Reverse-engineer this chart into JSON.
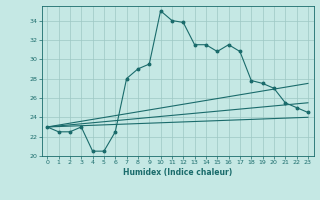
{
  "xlabel": "Humidex (Indice chaleur)",
  "ylabel": "",
  "background_color": "#c5e8e4",
  "grid_color": "#9ec8c4",
  "line_color": "#1a6b6b",
  "xlim": [
    -0.5,
    23.5
  ],
  "ylim": [
    20,
    35.5
  ],
  "yticks": [
    20,
    22,
    24,
    26,
    28,
    30,
    32,
    34
  ],
  "xticks": [
    0,
    1,
    2,
    3,
    4,
    5,
    6,
    7,
    8,
    9,
    10,
    11,
    12,
    13,
    14,
    15,
    16,
    17,
    18,
    19,
    20,
    21,
    22,
    23
  ],
  "series": [
    {
      "x": [
        0,
        1,
        2,
        3,
        4,
        5,
        6,
        7,
        8,
        9,
        10,
        11,
        12,
        13,
        14,
        15,
        16,
        17,
        18,
        19,
        20,
        21,
        22,
        23
      ],
      "y": [
        23,
        22.5,
        22.5,
        23,
        20.5,
        20.5,
        22.5,
        28,
        29,
        29.5,
        35,
        34,
        33.8,
        31.5,
        31.5,
        30.8,
        31.5,
        30.8,
        27.8,
        27.5,
        27,
        25.5,
        25,
        24.5
      ],
      "style": "-o",
      "linewidth": 0.8,
      "markersize": 1.8
    },
    {
      "x": [
        0,
        23
      ],
      "y": [
        23,
        27.5
      ],
      "style": "-",
      "linewidth": 0.8,
      "markersize": 0
    },
    {
      "x": [
        0,
        23
      ],
      "y": [
        23,
        25.5
      ],
      "style": "-",
      "linewidth": 0.8,
      "markersize": 0
    },
    {
      "x": [
        0,
        23
      ],
      "y": [
        23,
        24.0
      ],
      "style": "-",
      "linewidth": 0.8,
      "markersize": 0
    }
  ]
}
